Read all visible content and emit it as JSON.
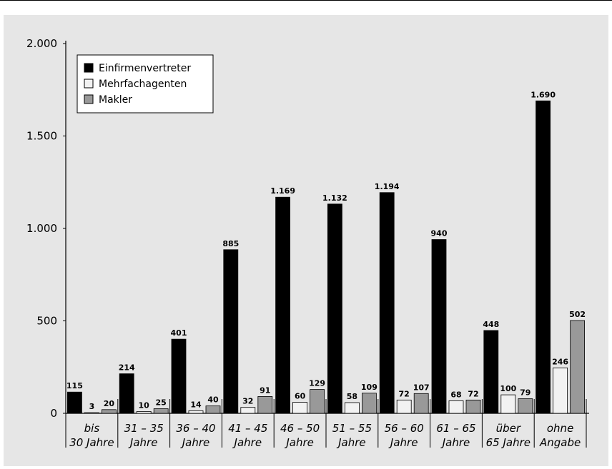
{
  "chart_data": {
    "type": "bar",
    "title": "",
    "xlabel": "",
    "ylabel": "",
    "ylim": [
      0,
      2000
    ],
    "yticks": [
      {
        "value": 0,
        "label": "0"
      },
      {
        "value": 500,
        "label": "500"
      },
      {
        "value": 1000,
        "label": "1.000"
      },
      {
        "value": 1500,
        "label": "1.500"
      },
      {
        "value": 2000,
        "label": "2.000"
      }
    ],
    "categories": [
      [
        "bis",
        "30 Jahre"
      ],
      [
        "31 – 35",
        "Jahre"
      ],
      [
        "36 – 40",
        "Jahre"
      ],
      [
        "41 – 45",
        "Jahre"
      ],
      [
        "46 – 50",
        "Jahre"
      ],
      [
        "51 – 55",
        "Jahre"
      ],
      [
        "56 – 60",
        "Jahre"
      ],
      [
        "61 – 65",
        "Jahre"
      ],
      [
        "über",
        "65 Jahre"
      ],
      [
        "ohne",
        "Angabe"
      ]
    ],
    "series": [
      {
        "name": "Einfirmenvertreter",
        "color": "#000000",
        "values": [
          115,
          214,
          401,
          885,
          1169,
          1132,
          1194,
          940,
          448,
          1690
        ],
        "labels": [
          "115",
          "214",
          "401",
          "885",
          "1.169",
          "1.132",
          "1.194",
          "940",
          "448",
          "1.690"
        ]
      },
      {
        "name": "Mehrfachagenten",
        "color": "#f2f2f2",
        "values": [
          3,
          10,
          14,
          32,
          60,
          58,
          72,
          68,
          100,
          246
        ],
        "labels": [
          "3",
          "10",
          "14",
          "32",
          "60",
          "58",
          "72",
          "68",
          "100",
          "246"
        ]
      },
      {
        "name": "Makler",
        "color": "#999999",
        "values": [
          20,
          25,
          40,
          91,
          129,
          109,
          107,
          72,
          79,
          502
        ],
        "labels": [
          "20",
          "25",
          "40",
          "91",
          "129",
          "109",
          "107",
          "72",
          "79",
          "502"
        ]
      }
    ],
    "legend_position": "top-left",
    "grid": false
  }
}
